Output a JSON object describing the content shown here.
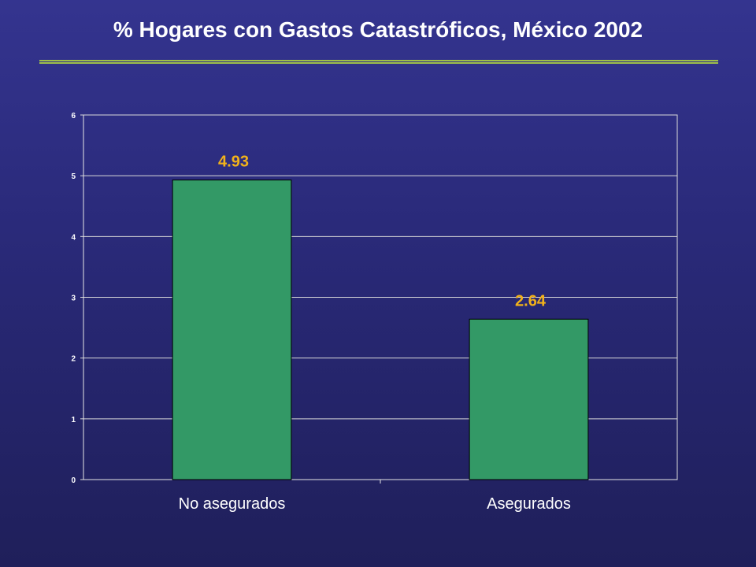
{
  "slide": {
    "title": "% Hogares con Gastos Catastróficos, México 2002"
  },
  "colors": {
    "bar": "#339966",
    "data_label": "#f2b21a",
    "gridline": "#d9d9d9",
    "accent_rule": "#9fbf4a"
  },
  "chart_data": {
    "type": "bar",
    "categories": [
      "No asegurados",
      "Asegurados"
    ],
    "values": [
      4.93,
      2.64
    ],
    "data_labels": [
      "4.93",
      "2.64"
    ],
    "title": "% Hogares con Gastos Catastróficos, México 2002",
    "xlabel": "",
    "ylabel": "",
    "ylim": [
      0,
      6
    ],
    "yticks": [
      0,
      1,
      2,
      3,
      4,
      5,
      6
    ],
    "grid": true,
    "legend": "none"
  }
}
